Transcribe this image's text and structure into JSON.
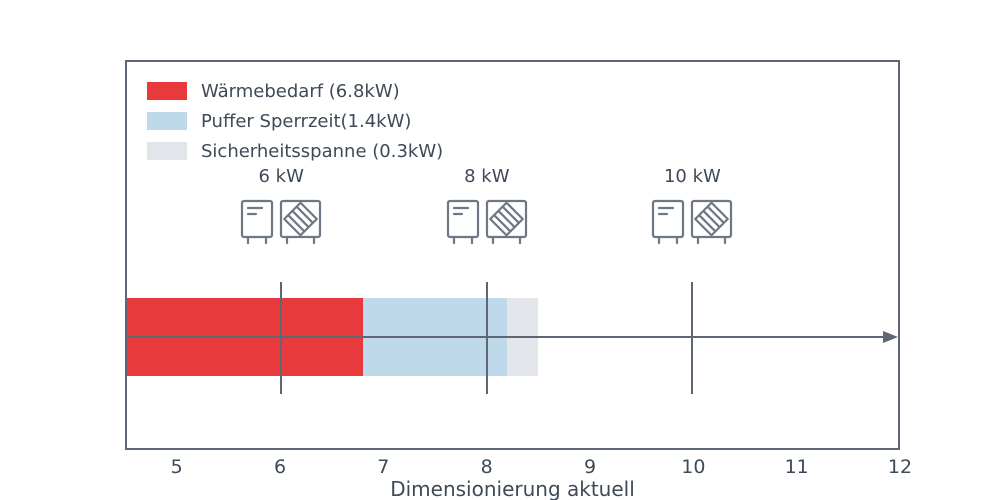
{
  "chart_data": {
    "type": "bar",
    "orientation": "horizontal-stacked",
    "title": "",
    "xlabel": "Dimensionierung aktuell",
    "ylabel": "",
    "xlim": [
      4.5,
      12
    ],
    "x_ticks": [
      "5",
      "6",
      "7",
      "8",
      "9",
      "10",
      "11",
      "12"
    ],
    "grid": false,
    "legend_position": "upper-left",
    "bar_start": 4.5,
    "bar_segments": [
      {
        "name": "waermebedarf",
        "label": "Wärmebedarf (6.8kW)",
        "value_kw": 6.8,
        "end": 6.8,
        "color": "#e8393d"
      },
      {
        "name": "puffer-sperrzeit",
        "label": "Puffer Sperrzeit(1.4kW)",
        "value_kw": 1.4,
        "end": 8.2,
        "color": "#bdd9ea"
      },
      {
        "name": "sicherheitsspanne",
        "label": "Sicherheitsspanne (0.3kW)",
        "value_kw": 0.3,
        "end": 8.5,
        "color": "#e2e5e9"
      }
    ],
    "pump_markers": [
      {
        "x": 6,
        "label": "6 kW"
      },
      {
        "x": 8,
        "label": "8 kW"
      },
      {
        "x": 10,
        "label": "10 kW"
      }
    ]
  },
  "colors": {
    "axis": "#5e6774",
    "text": "#3f4a58",
    "icon": "#6e7884",
    "background": "#ffffff"
  }
}
